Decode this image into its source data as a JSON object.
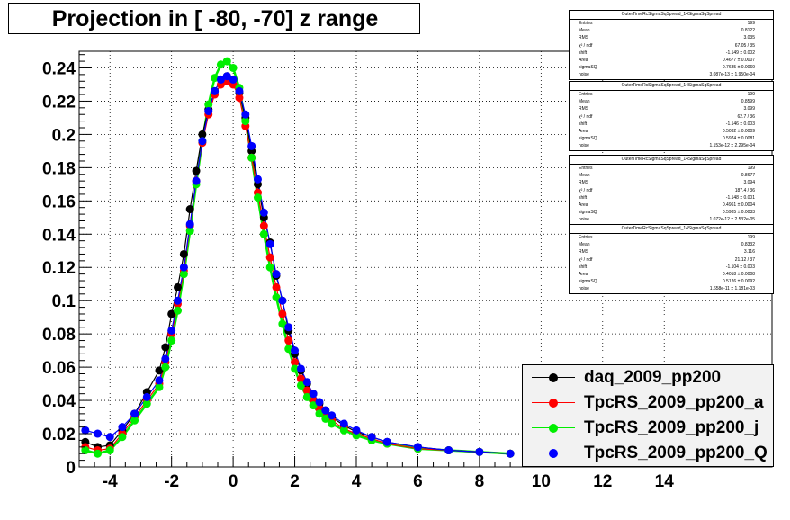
{
  "title": "Projection in [ -80, -70] z range",
  "chart_data": {
    "type": "scatter",
    "title": "Projection in [ -80, -70] z range",
    "xlabel": "",
    "ylabel": "",
    "xlim": [
      -5,
      17.5
    ],
    "ylim": [
      0,
      0.25
    ],
    "x_ticks": [
      "-4",
      "-2",
      "0",
      "2",
      "4",
      "6",
      "8",
      "10",
      "12",
      "14"
    ],
    "x_tick_values": [
      -4,
      -2,
      0,
      2,
      4,
      6,
      8,
      10,
      12,
      14
    ],
    "y_ticks": [
      "0",
      "0.02",
      "0.04",
      "0.06",
      "0.08",
      "0.1",
      "0.12",
      "0.14",
      "0.16",
      "0.18",
      "0.2",
      "0.22",
      "0.24"
    ],
    "y_tick_values": [
      0,
      0.02,
      0.04,
      0.06,
      0.08,
      0.1,
      0.12,
      0.14,
      0.16,
      0.18,
      0.2,
      0.22,
      0.24
    ],
    "grid": true,
    "legend_position": "bottom-right",
    "series": [
      {
        "name": "daq_2009_pp200",
        "color": "#000000",
        "x": [
          -4.8,
          -4.4,
          -4.0,
          -3.6,
          -3.2,
          -2.8,
          -2.4,
          -2.2,
          -2.0,
          -1.8,
          -1.6,
          -1.4,
          -1.2,
          -1.0,
          -0.8,
          -0.6,
          -0.4,
          -0.2,
          0.0,
          0.2,
          0.4,
          0.6,
          0.8,
          1.0,
          1.2,
          1.4,
          1.6,
          1.8,
          2.0,
          2.2,
          2.4,
          2.6,
          2.8,
          3.0,
          3.2,
          3.6,
          4.0,
          4.5,
          5.0,
          6.0,
          7.0,
          8.0,
          9.0
        ],
        "y": [
          0.015,
          0.012,
          0.013,
          0.022,
          0.032,
          0.045,
          0.058,
          0.072,
          0.092,
          0.108,
          0.128,
          0.155,
          0.178,
          0.2,
          0.215,
          0.226,
          0.233,
          0.235,
          0.233,
          0.225,
          0.21,
          0.19,
          0.17,
          0.15,
          0.135,
          0.115,
          0.1,
          0.082,
          0.068,
          0.058,
          0.05,
          0.044,
          0.038,
          0.034,
          0.03,
          0.025,
          0.021,
          0.018,
          0.015,
          0.012,
          0.01,
          0.009,
          0.008
        ]
      },
      {
        "name": "TpcRS_2009_pp200_a",
        "color": "#ff0000",
        "x": [
          -4.8,
          -4.4,
          -4.0,
          -3.6,
          -3.2,
          -2.8,
          -2.4,
          -2.2,
          -2.0,
          -1.8,
          -1.6,
          -1.4,
          -1.2,
          -1.0,
          -0.8,
          -0.6,
          -0.4,
          -0.2,
          0.0,
          0.2,
          0.4,
          0.6,
          0.8,
          1.0,
          1.2,
          1.4,
          1.6,
          1.8,
          2.0,
          2.2,
          2.4,
          2.6,
          2.8,
          3.0,
          3.2,
          3.6,
          4.0,
          4.5,
          5.0,
          6.0,
          7.0,
          8.0,
          9.0
        ],
        "y": [
          0.012,
          0.01,
          0.011,
          0.02,
          0.03,
          0.04,
          0.05,
          0.063,
          0.08,
          0.098,
          0.118,
          0.145,
          0.172,
          0.195,
          0.212,
          0.224,
          0.23,
          0.232,
          0.23,
          0.222,
          0.205,
          0.186,
          0.165,
          0.145,
          0.126,
          0.108,
          0.092,
          0.076,
          0.063,
          0.053,
          0.046,
          0.04,
          0.035,
          0.031,
          0.028,
          0.023,
          0.02,
          0.017,
          0.014,
          0.011,
          0.01,
          0.009,
          0.008
        ]
      },
      {
        "name": "TpcRS_2009_pp200_j",
        "color": "#00ee00",
        "x": [
          -4.8,
          -4.4,
          -4.0,
          -3.6,
          -3.2,
          -2.8,
          -2.4,
          -2.2,
          -2.0,
          -1.8,
          -1.6,
          -1.4,
          -1.2,
          -1.0,
          -0.8,
          -0.6,
          -0.4,
          -0.2,
          0.0,
          0.2,
          0.4,
          0.6,
          0.8,
          1.0,
          1.2,
          1.4,
          1.6,
          1.8,
          2.0,
          2.2,
          2.4,
          2.6,
          2.8,
          3.0,
          3.2,
          3.6,
          4.0,
          4.5,
          5.0,
          6.0,
          7.0,
          8.0,
          9.0
        ],
        "y": [
          0.01,
          0.008,
          0.01,
          0.018,
          0.028,
          0.038,
          0.048,
          0.06,
          0.076,
          0.094,
          0.116,
          0.142,
          0.17,
          0.196,
          0.218,
          0.234,
          0.242,
          0.244,
          0.24,
          0.228,
          0.208,
          0.186,
          0.162,
          0.14,
          0.12,
          0.102,
          0.086,
          0.071,
          0.059,
          0.049,
          0.042,
          0.037,
          0.032,
          0.029,
          0.026,
          0.022,
          0.019,
          0.016,
          0.014,
          0.011,
          0.01,
          0.009,
          0.008
        ]
      },
      {
        "name": "TpcRS_2009_pp200_Q",
        "color": "#0000ff",
        "x": [
          -4.8,
          -4.4,
          -4.0,
          -3.6,
          -3.2,
          -2.8,
          -2.4,
          -2.2,
          -2.0,
          -1.8,
          -1.6,
          -1.4,
          -1.2,
          -1.0,
          -0.8,
          -0.6,
          -0.4,
          -0.2,
          0.0,
          0.2,
          0.4,
          0.6,
          0.8,
          1.0,
          1.2,
          1.4,
          1.6,
          1.8,
          2.0,
          2.2,
          2.4,
          2.6,
          2.8,
          3.0,
          3.2,
          3.6,
          4.0,
          4.5,
          5.0,
          6.0,
          7.0,
          8.0,
          9.0
        ],
        "y": [
          0.022,
          0.02,
          0.018,
          0.024,
          0.032,
          0.042,
          0.052,
          0.065,
          0.082,
          0.1,
          0.12,
          0.146,
          0.172,
          0.196,
          0.214,
          0.226,
          0.233,
          0.235,
          0.233,
          0.226,
          0.212,
          0.193,
          0.173,
          0.153,
          0.134,
          0.116,
          0.1,
          0.084,
          0.07,
          0.059,
          0.051,
          0.044,
          0.039,
          0.034,
          0.031,
          0.026,
          0.022,
          0.018,
          0.015,
          0.012,
          0.01,
          0.009,
          0.008
        ]
      }
    ]
  },
  "stats_boxes": [
    {
      "title": "OuterTimeRcSigmaSqSpread_14SigmaSqSpread",
      "rows": [
        [
          "Entries",
          "199"
        ],
        [
          "Mean",
          "0.8122"
        ],
        [
          "RMS",
          "3.035"
        ],
        [
          "χ² / ndf",
          "67.05 / 35"
        ],
        [
          "shift",
          "-1.149 ± 0.002"
        ],
        [
          "Area",
          "0.4677 ± 0.0007"
        ],
        [
          "sigmaSQ",
          "0.7685 ± 0.0069"
        ],
        [
          "noise",
          "3.087e-13 ± 1.950e-04"
        ]
      ]
    },
    {
      "title": "OuterTimeRcSigmaSqSpread_14SigmaSqSpread",
      "rows": [
        [
          "Entries",
          "199"
        ],
        [
          "Mean",
          "0.8599"
        ],
        [
          "RMS",
          "3.099"
        ],
        [
          "χ² / ndf",
          "62.7 / 36"
        ],
        [
          "shift",
          "-1.146 ± 0.003"
        ],
        [
          "Area",
          "0.5032 ± 0.0009"
        ],
        [
          "sigmaSQ",
          "0.5974 ± 0.0081"
        ],
        [
          "noise",
          "1.153e-12 ± 2.295e-04"
        ]
      ]
    },
    {
      "title": "OuterTimeRcSigmaSqSpread_14SigmaSqSpread",
      "rows": [
        [
          "Entries",
          "199"
        ],
        [
          "Mean",
          "0.8677"
        ],
        [
          "RMS",
          "3.094"
        ],
        [
          "χ² / ndf",
          "187.4 / 36"
        ],
        [
          "shift",
          "-1.148 ± 0.001"
        ],
        [
          "Area",
          "0.4961 ± 0.0004"
        ],
        [
          "sigmaSQ",
          "0.5985 ± 0.0033"
        ],
        [
          "noise",
          "1.072e-12 ± 2.532e-05"
        ]
      ]
    },
    {
      "title": "OuterTimeRcSigmaSqSpread_14SigmaSqSpread",
      "rows": [
        [
          "Entries",
          "199"
        ],
        [
          "Mean",
          "0.8332"
        ],
        [
          "RMS",
          "3.116"
        ],
        [
          "χ² / ndf",
          "21.12 / 37"
        ],
        [
          "shift",
          "-1.104 ± 0.003"
        ],
        [
          "Area",
          "0.4018 ± 0.0008"
        ],
        [
          "sigmaSQ",
          "0.5126 ± 0.0092"
        ],
        [
          "noise",
          "1.658e-11 ± 1.181e-03"
        ]
      ]
    }
  ]
}
